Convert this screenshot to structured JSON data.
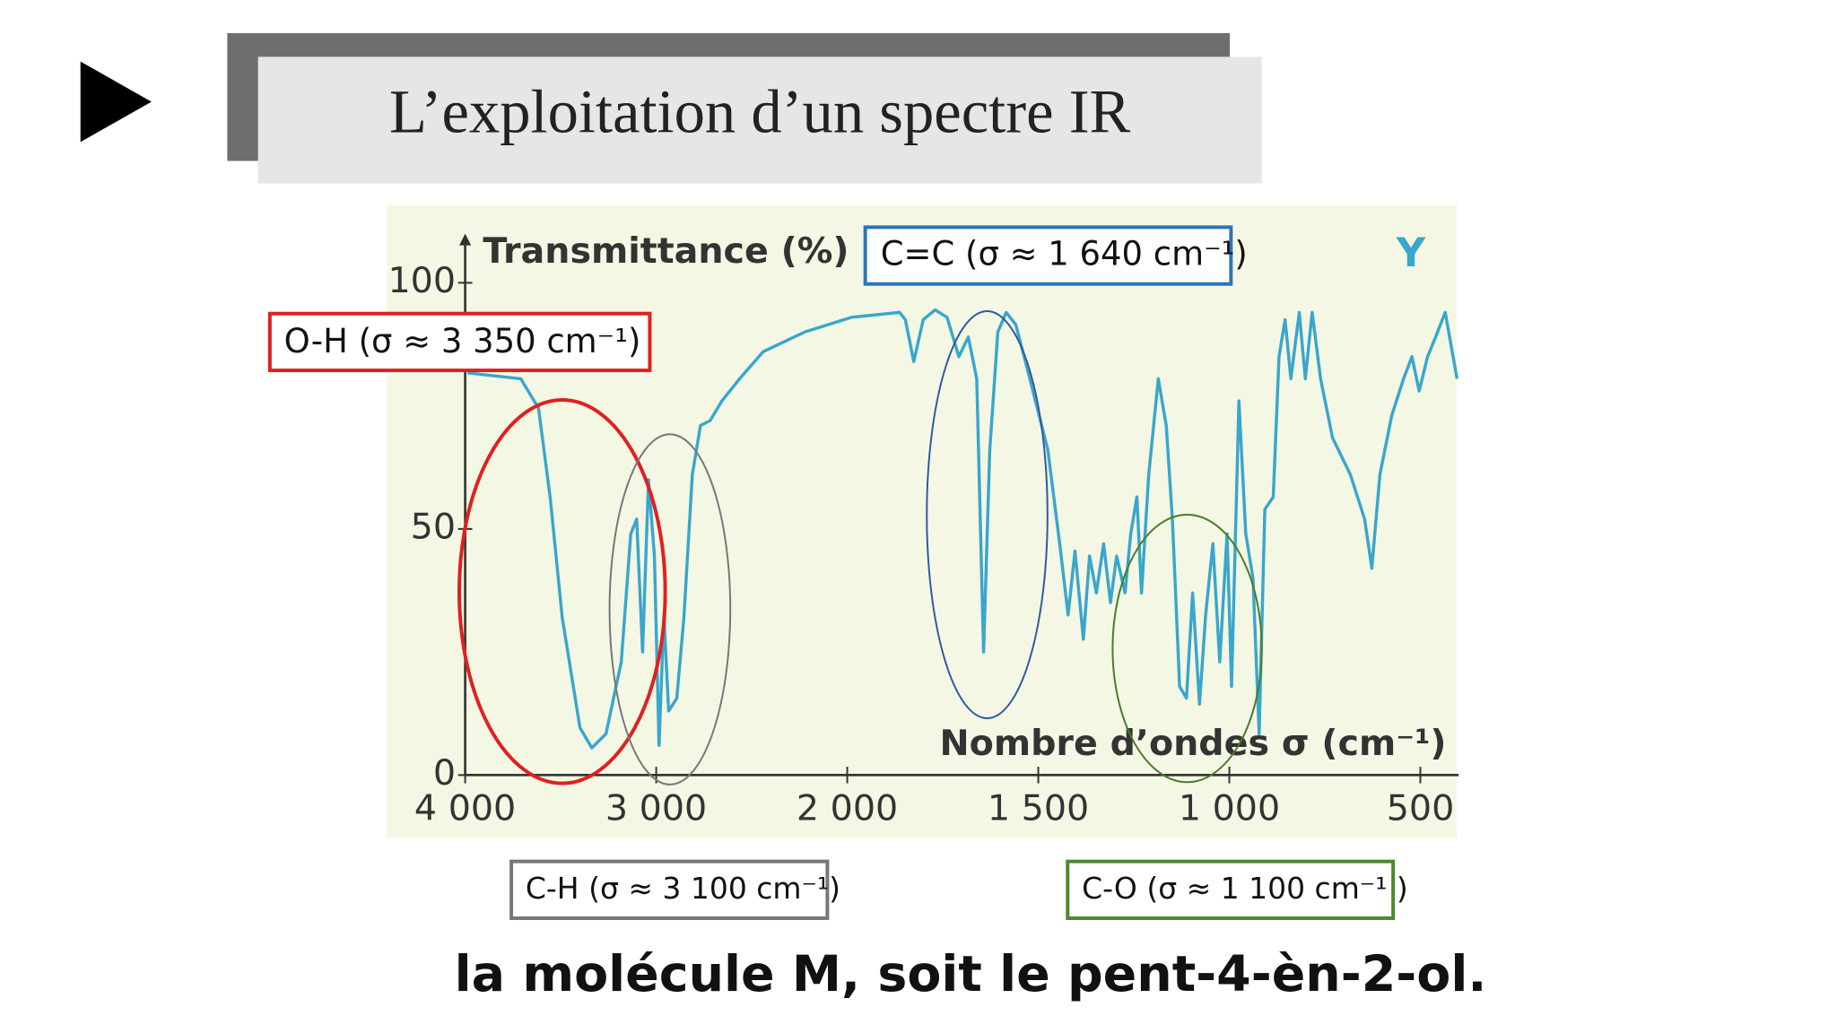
{
  "title": "L’exploitation d’un spectre IR",
  "caption": "la molécule M, soit le pent-4-èn-2-ol.",
  "annotations": {
    "oh": "O-H (σ ≈ 3 350 cm⁻¹)",
    "cc": "C=C (σ ≈ 1 640 cm⁻¹)",
    "ch": "C-H (σ ≈ 3 100 cm⁻¹)",
    "co": "C-O (σ ≈ 1 100 cm⁻¹ )"
  },
  "chart_data": {
    "type": "line",
    "label": "Y",
    "ylabel": "Transmittance (%)",
    "xlabel": "Nombre d’ondes σ (cm⁻¹)",
    "x": [
      3988,
      3709,
      3616,
      3554,
      3492,
      3399,
      3337,
      3263,
      3183,
      3133,
      3102,
      3071,
      3040,
      3009,
      2985,
      2960,
      2935,
      2892,
      2855,
      2811,
      2768,
      2718,
      2656,
      2563,
      2440,
      2223,
      1988,
      1863,
      1848,
      1826,
      1801,
      1770,
      1739,
      1708,
      1683,
      1661,
      1643,
      1627,
      1606,
      1584,
      1559,
      1522,
      1475,
      1444,
      1422,
      1404,
      1382,
      1366,
      1348,
      1329,
      1311,
      1295,
      1273,
      1258,
      1242,
      1230,
      1211,
      1186,
      1165,
      1149,
      1130,
      1112,
      1096,
      1078,
      1062,
      1043,
      1025,
      1006,
      994,
      975,
      957,
      938,
      922,
      907,
      885,
      870,
      854,
      839,
      817,
      801,
      783,
      761,
      730,
      683,
      646,
      627,
      606,
      575,
      544,
      522,
      503,
      481,
      460,
      435,
      404
    ],
    "series": [
      {
        "color": "#3aa6cc",
        "values": [
          81.7,
          80.5,
          74.5,
          56,
          32,
          9.6,
          5.5,
          8.4,
          23,
          49,
          52,
          25,
          60,
          44.5,
          6,
          32.5,
          13,
          15.6,
          32,
          61,
          71,
          72,
          76,
          80.5,
          86,
          90,
          93,
          94,
          92.5,
          84,
          92.5,
          94.5,
          93,
          85,
          89,
          80.5,
          25,
          66,
          90,
          94,
          91.5,
          80.5,
          66,
          47,
          32.5,
          45.5,
          27.6,
          44.5,
          37,
          47,
          35,
          44.5,
          37,
          49,
          56.5,
          37,
          61,
          80.5,
          71,
          52,
          18,
          15.6,
          37,
          14.4,
          32.5,
          47,
          23,
          49,
          18,
          76,
          49,
          40,
          8.4,
          54,
          56.5,
          85,
          92.5,
          80.5,
          94,
          80.5,
          94,
          80.5,
          68.5,
          61,
          52,
          42,
          61,
          73,
          80.5,
          85,
          78,
          85,
          89,
          94,
          80.5
        ]
      }
    ],
    "xlim": [
      4000,
      400
    ],
    "ylim": [
      0,
      110
    ],
    "xticks": [
      {
        "value": 4000,
        "label": "4 000"
      },
      {
        "value": 3000,
        "label": "3 000"
      },
      {
        "value": 2000,
        "label": "2 000"
      },
      {
        "value": 1500,
        "label": "1 500"
      },
      {
        "value": 1000,
        "label": "1 000"
      },
      500
    ],
    "yticks": [
      0,
      50,
      100
    ]
  }
}
